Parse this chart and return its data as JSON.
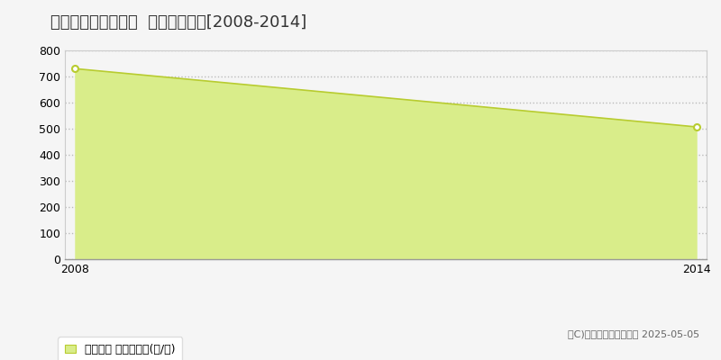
{
  "title": "東村山郡山辺町要害  林地価格推移[2008-2014]",
  "years": [
    2008,
    2014
  ],
  "values": [
    730,
    507
  ],
  "fill_color": "#d9ed8a",
  "line_color": "#b8cc30",
  "marker_color": "#ffffff",
  "marker_edge_color": "#b8cc30",
  "background_color": "#f5f5f5",
  "plot_bg_color": "#f5f5f5",
  "grid_color": "#bbbbbb",
  "ylim": [
    0,
    800
  ],
  "yticks": [
    0,
    100,
    200,
    300,
    400,
    500,
    600,
    700,
    800
  ],
  "xlim_left": 2008,
  "xlim_right": 2014,
  "legend_label": "林地価格 平均坪単価(円/坪)",
  "copyright_text": "（C)土地価格ドットコム 2025-05-05",
  "title_fontsize": 13,
  "axis_fontsize": 9,
  "legend_fontsize": 9
}
